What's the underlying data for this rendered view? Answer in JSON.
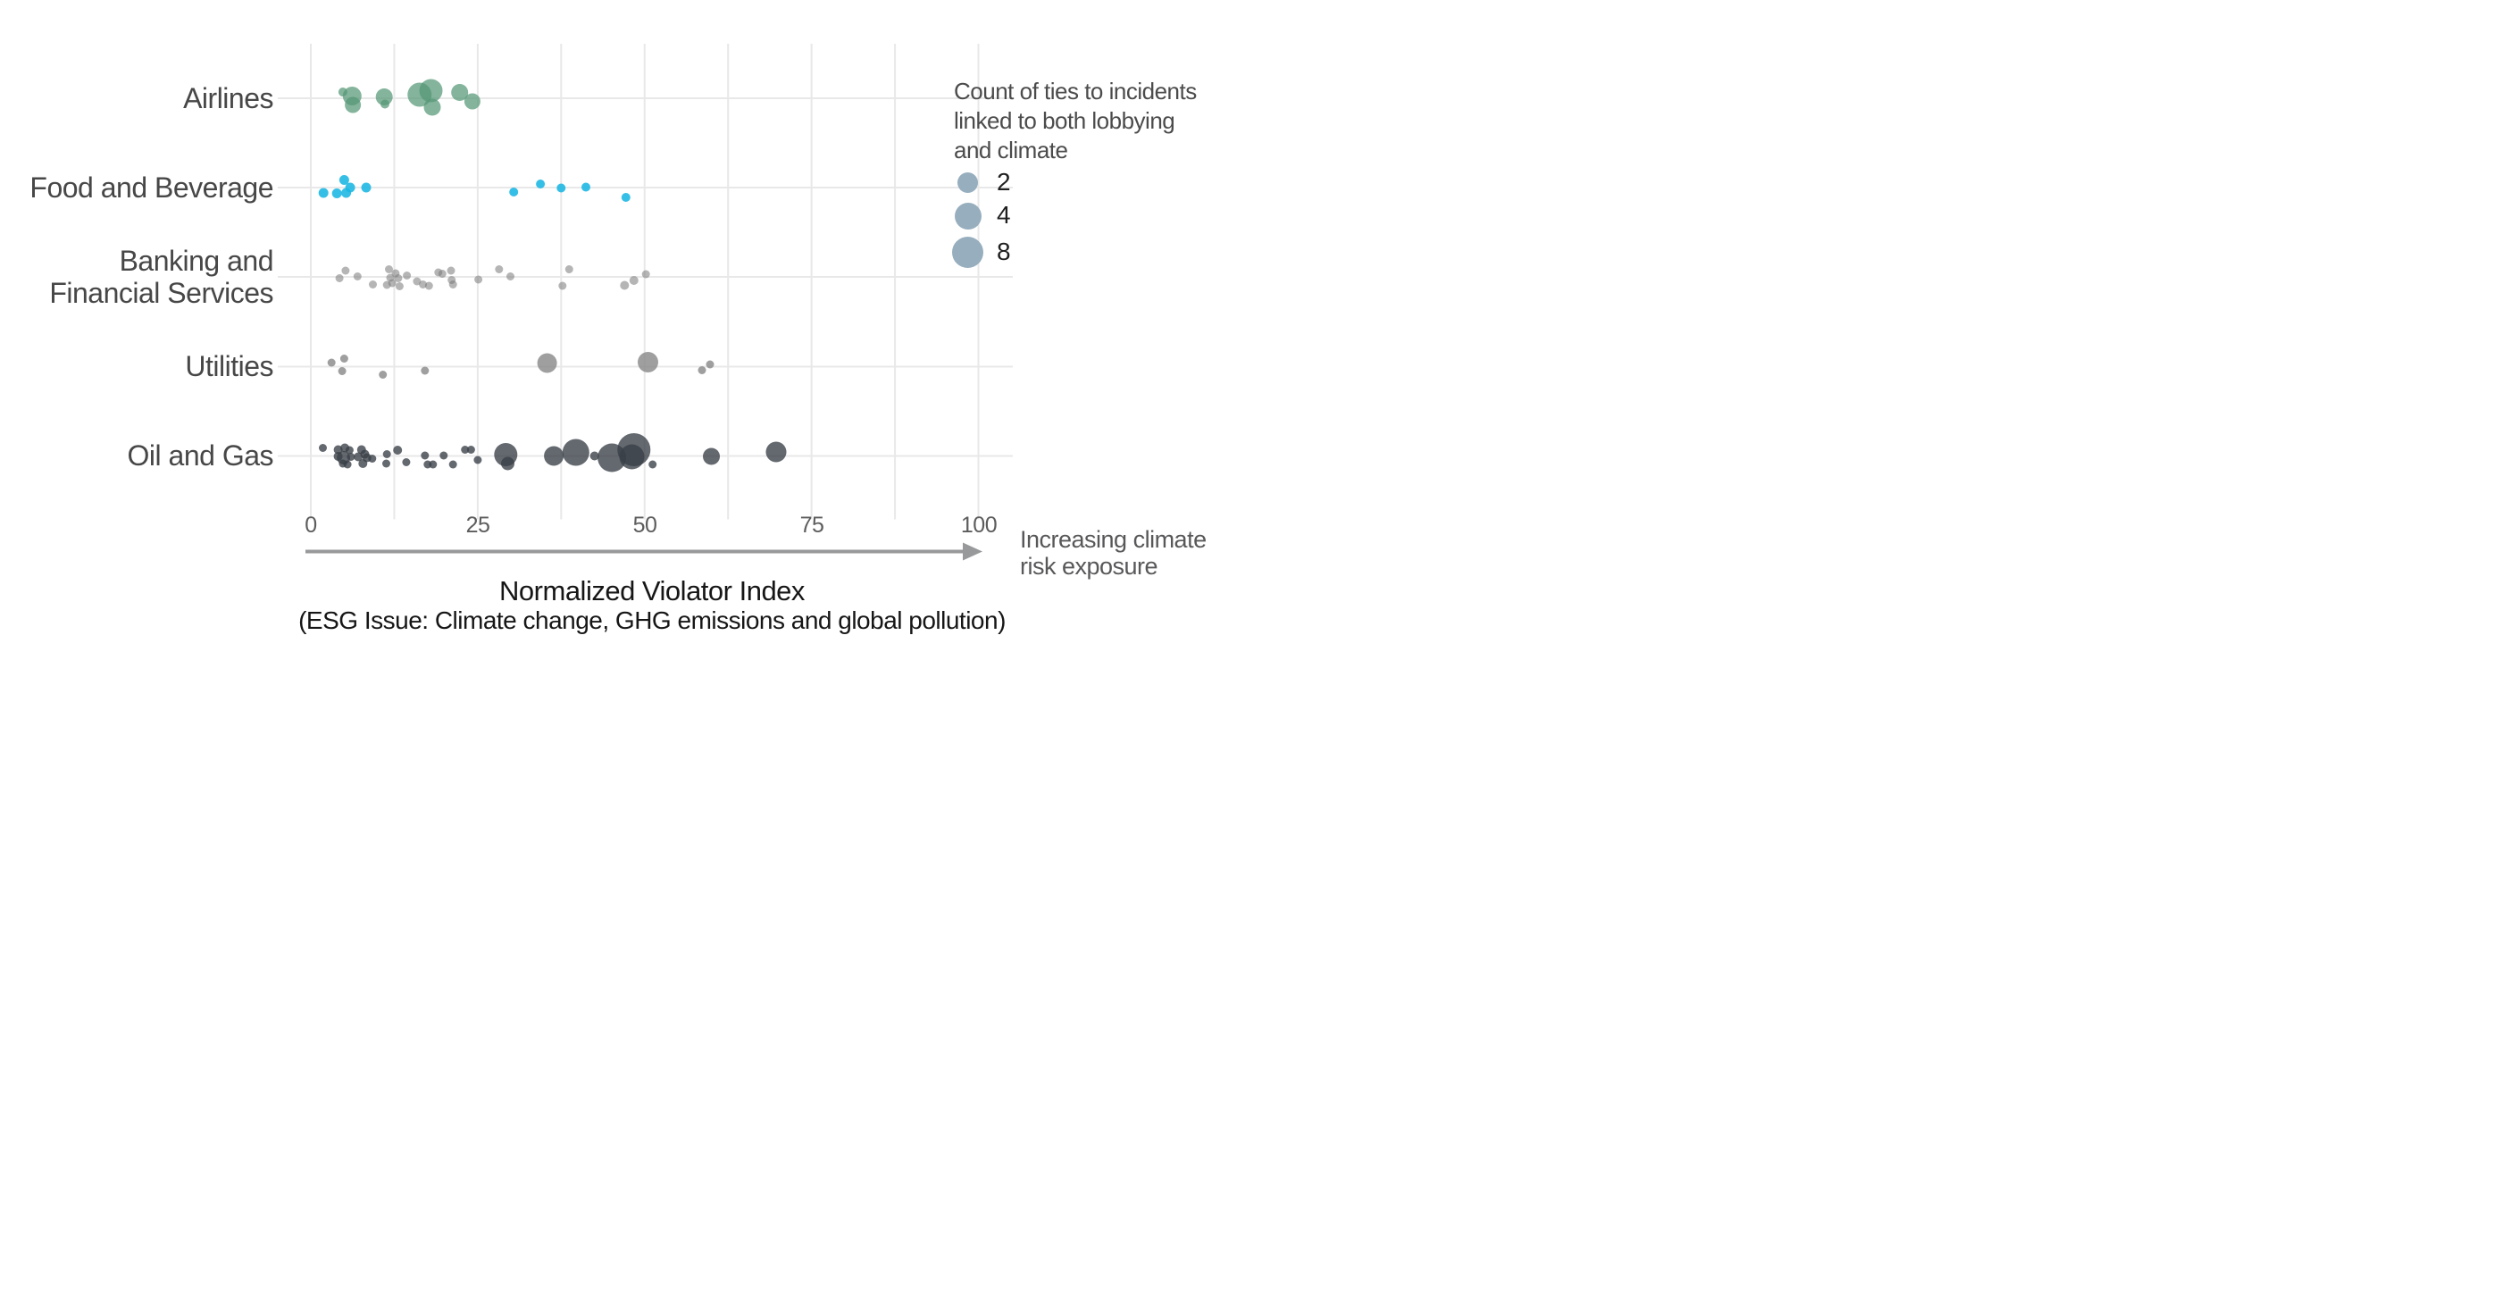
{
  "chart_data": {
    "type": "bubble",
    "title": "Normalized Violator Index",
    "subtitle": "(ESG Issue: Climate change, GHG emissions and global pollution)",
    "x_axis": {
      "title": "Normalized Violator Index",
      "subtitle": "(ESG Issue: Climate change, GHG emissions and global pollution)",
      "ticks": [
        0,
        25,
        50,
        75,
        100
      ],
      "range": [
        0,
        110
      ],
      "gridline_step": 12.5,
      "grid": "on",
      "annotation": "Increasing climate\nrisk exposure",
      "arrow": true
    },
    "y_categories": [
      "Airlines",
      "Food and Beverage",
      "Banking and\nFinancial Services",
      "Utilities",
      "Oil and Gas"
    ],
    "legend": {
      "title": "Count of ties to incidents\nlinked to both lobbying\nand climate",
      "position": "right",
      "bubble_color": "#97aebe",
      "items": [
        {
          "label": "2",
          "diameter": 23
        },
        {
          "label": "4",
          "diameter": 30
        },
        {
          "label": "8",
          "diameter": 35
        }
      ]
    },
    "point_format": "[x_value_on_index_0_to_100, vertical_jitter_px, bubble_radius_px] — bubble radius encodes count of ties (legend: 2, 4, 8)",
    "series": [
      {
        "name": "Airlines",
        "category_index": 0,
        "color": "#559776",
        "opacity": 0.72,
        "points": [
          [
            4.8,
            -14,
            10
          ],
          [
            6.2,
            -5,
            21
          ],
          [
            6.3,
            15,
            18
          ],
          [
            11,
            -3,
            19
          ],
          [
            11.1,
            13,
            10
          ],
          [
            16.3,
            -8,
            27
          ],
          [
            18,
            -17,
            26
          ],
          [
            18.2,
            20,
            19
          ],
          [
            22.3,
            -13,
            19
          ],
          [
            24.2,
            7,
            18
          ]
        ]
      },
      {
        "name": "Food and Beverage",
        "category_index": 1,
        "color": "#1ab6e3",
        "opacity": 0.88,
        "points": [
          [
            1.9,
            12,
            11
          ],
          [
            3.9,
            13,
            11
          ],
          [
            5,
            -17,
            11
          ],
          [
            5.3,
            12,
            11
          ],
          [
            5.9,
            0,
            11
          ],
          [
            8.3,
            0,
            11
          ],
          [
            30.4,
            10,
            10
          ],
          [
            34.4,
            -8,
            10
          ],
          [
            37.5,
            1,
            10
          ],
          [
            41.2,
            -1,
            10
          ],
          [
            47.2,
            22,
            10
          ]
        ]
      },
      {
        "name": "Banking and Financial Services",
        "category_index": 2,
        "color": "#787878",
        "opacity": 0.55,
        "points": [
          [
            4.3,
            3,
            9
          ],
          [
            5.2,
            -14,
            9
          ],
          [
            7,
            -1,
            9
          ],
          [
            9.3,
            17,
            9
          ],
          [
            11.4,
            18,
            9
          ],
          [
            11.7,
            -17,
            9
          ],
          [
            11.9,
            2,
            9
          ],
          [
            12.2,
            14,
            9
          ],
          [
            12.7,
            -8,
            9
          ],
          [
            13.1,
            3,
            9
          ],
          [
            13.3,
            21,
            9
          ],
          [
            14.4,
            -3,
            9
          ],
          [
            15.9,
            10,
            9
          ],
          [
            16.8,
            17,
            9
          ],
          [
            17.7,
            20,
            9
          ],
          [
            19.1,
            -10,
            9
          ],
          [
            19.7,
            -7,
            9
          ],
          [
            21,
            -14,
            9
          ],
          [
            21.1,
            7,
            9
          ],
          [
            21.3,
            17,
            9
          ],
          [
            25.1,
            6,
            9
          ],
          [
            28.2,
            -17,
            9
          ],
          [
            29.9,
            -1,
            9
          ],
          [
            37.7,
            20,
            9
          ],
          [
            38.7,
            -17,
            9
          ],
          [
            47,
            19,
            10
          ],
          [
            48.4,
            8,
            10
          ],
          [
            50.2,
            -6,
            9
          ]
        ]
      },
      {
        "name": "Utilities",
        "category_index": 3,
        "color": "#878787",
        "opacity": 0.8,
        "points": [
          [
            3.1,
            -9,
            9
          ],
          [
            5,
            -18,
            9
          ],
          [
            4.7,
            10,
            9
          ],
          [
            10.8,
            18,
            9
          ],
          [
            17.1,
            9,
            9
          ],
          [
            35.4,
            -8,
            22
          ],
          [
            50.5,
            -10,
            23
          ],
          [
            58.6,
            8,
            9
          ],
          [
            59.8,
            -5,
            9
          ]
        ]
      },
      {
        "name": "Oil and Gas",
        "category_index": 4,
        "color": "#383f46",
        "opacity": 0.78,
        "points": [
          [
            1.8,
            -18,
            9
          ],
          [
            4.1,
            -14,
            10
          ],
          [
            5.1,
            -18,
            10
          ],
          [
            5.8,
            -13,
            9
          ],
          [
            4.1,
            1,
            10
          ],
          [
            4.9,
            4,
            15
          ],
          [
            6,
            2,
            9
          ],
          [
            4.8,
            17,
            9
          ],
          [
            5.5,
            19,
            9
          ],
          [
            7.6,
            -14,
            10
          ],
          [
            7.1,
            2,
            10
          ],
          [
            8.1,
            -4,
            10
          ],
          [
            8.4,
            4,
            10
          ],
          [
            9.2,
            6,
            9
          ],
          [
            7.8,
            17,
            10
          ],
          [
            11.4,
            -4,
            9
          ],
          [
            11.3,
            17,
            9
          ],
          [
            13,
            -13,
            10
          ],
          [
            14.3,
            14,
            9
          ],
          [
            17.1,
            -1,
            9
          ],
          [
            17.5,
            19,
            9
          ],
          [
            18.3,
            19,
            9
          ],
          [
            19.9,
            -1,
            9
          ],
          [
            21.3,
            19,
            9
          ],
          [
            23.1,
            -14,
            9
          ],
          [
            24,
            -14,
            9
          ],
          [
            25,
            9,
            9
          ],
          [
            29.2,
            -3,
            26
          ],
          [
            29.5,
            17,
            15
          ],
          [
            36.4,
            0,
            22
          ],
          [
            39.7,
            -8,
            30
          ],
          [
            42.5,
            0,
            10
          ],
          [
            45.1,
            4,
            32
          ],
          [
            48.4,
            -14,
            37
          ],
          [
            48.1,
            2,
            28
          ],
          [
            51.2,
            19,
            9
          ],
          [
            60,
            1,
            19
          ],
          [
            69.7,
            -9,
            23
          ]
        ]
      }
    ],
    "style": {
      "gridline_color": "#e8e8e8",
      "arrow_color": "#98999b",
      "background": "#ffffff"
    }
  }
}
